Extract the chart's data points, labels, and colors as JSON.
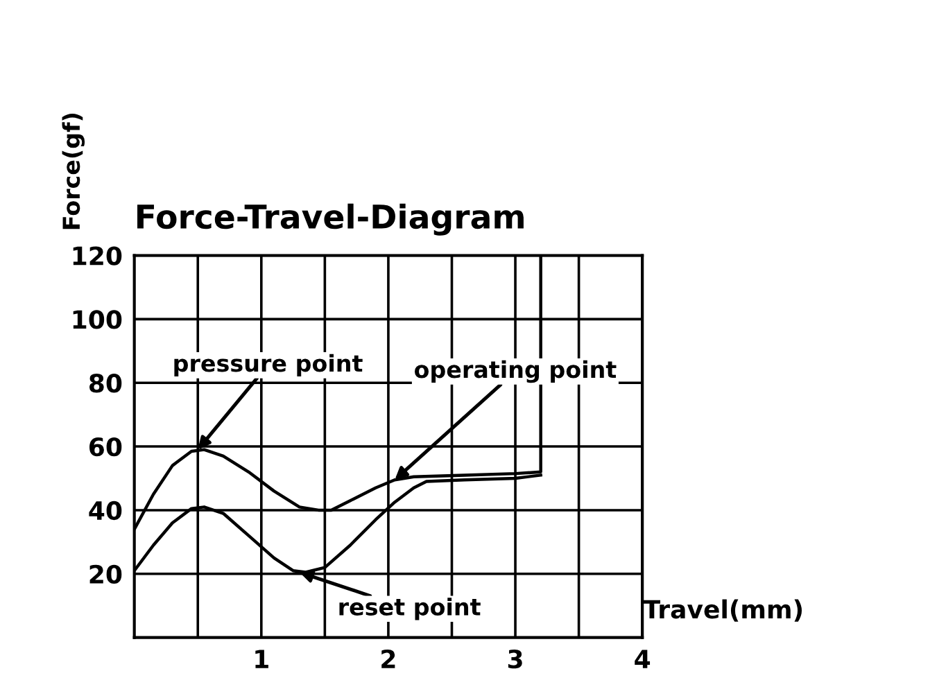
{
  "chart_data": {
    "type": "line",
    "title": "Force-Travel-Diagram",
    "xlabel": "Travel(mm)",
    "ylabel": "Force(gf)",
    "series": [
      {
        "color": "#000000",
        "x": [
          0,
          0.15,
          0.3,
          0.45,
          0.55,
          0.7,
          0.9,
          1.1,
          1.3,
          1.45,
          1.55,
          1.7,
          1.9,
          2.05,
          2.2,
          2.6,
          3.0,
          3.2,
          3.2
        ],
        "values": [
          34,
          45,
          54,
          58.5,
          59,
          57,
          52,
          46,
          41,
          40,
          40,
          43,
          47,
          49.5,
          50.5,
          51,
          51.5,
          52,
          120
        ]
      },
      {
        "color": "#000000",
        "x": [
          0,
          0.15,
          0.3,
          0.45,
          0.55,
          0.7,
          0.9,
          1.1,
          1.25,
          1.35,
          1.5,
          1.7,
          1.9,
          2.05,
          2.2,
          2.3,
          2.6,
          3.0,
          3.2
        ],
        "values": [
          21,
          29,
          36,
          40.5,
          41,
          39,
          32,
          25,
          21,
          20.5,
          22,
          29,
          37,
          42.5,
          47,
          49,
          49.5,
          50,
          51
        ]
      }
    ],
    "annotations": [
      {
        "text": "pressure point",
        "x": 0.5,
        "y": 59
      },
      {
        "text": "operating point",
        "x": 2.05,
        "y": 49.5
      },
      {
        "text": "reset point",
        "x": 1.3,
        "y": 20.5
      }
    ],
    "xlim": [
      0,
      4
    ],
    "ylim": [
      0,
      120
    ],
    "xticks": [
      {
        "value": 0.5,
        "label": null
      },
      1,
      {
        "value": 1.5,
        "label": null
      },
      2,
      {
        "value": 2.5,
        "label": null
      },
      3,
      {
        "value": 3.5,
        "label": null
      },
      4
    ],
    "yticks": [
      20,
      40,
      60,
      80,
      100,
      120
    ],
    "grid": true,
    "marker": "none",
    "line_style": "solid"
  }
}
